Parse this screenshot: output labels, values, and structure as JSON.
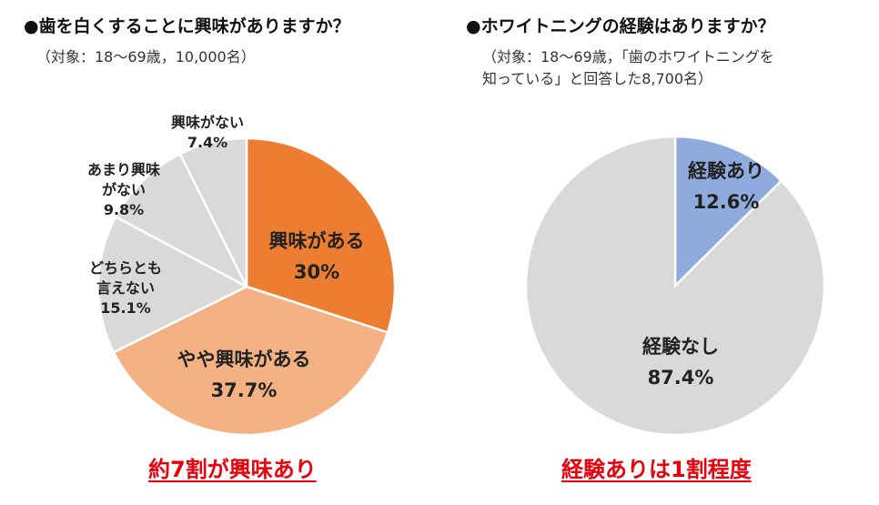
{
  "colors": {
    "orange_dark": "#ed7d31",
    "orange_light": "#f4b183",
    "gray": "#d9d9d9",
    "blue": "#8faadc",
    "conclusion_red": "#e8000b",
    "slice_border": "#ffffff"
  },
  "left": {
    "title": "●歯を白くすることに興味がありますか？",
    "note": "（対象：18〜69歳，10,000名）",
    "conclusion": "約7割が興味あり",
    "outside_labels": {
      "no_interest": {
        "line1": "興味がない",
        "line2": "7.4%"
      },
      "little_interest": {
        "line1": "あまり興味",
        "line2": "がない",
        "line3": "9.8%"
      },
      "neutral": {
        "line1": "どちらとも",
        "line2": "言えない",
        "line3": "15.1%"
      }
    }
  },
  "right": {
    "title": "●ホワイトニングの経験はありますか？",
    "note_line1": "（対象：18〜69歳，「歯のホワイトニングを",
    "note_line2": "知っている」と回答した8,700名）",
    "conclusion": "経験ありは1割程度"
  },
  "chart_data": [
    {
      "type": "pie",
      "title": "●歯を白くすることに興味がありますか？",
      "slices": [
        {
          "label": "興味がある",
          "value": 30,
          "value_label": "30%",
          "color": "#ed7d31"
        },
        {
          "label": "やや興味がある",
          "value": 37.7,
          "value_label": "37.7%",
          "color": "#f4b183"
        },
        {
          "label": "どちらとも言えない",
          "value": 15.1,
          "value_label": "15.1%",
          "color": "#d9d9d9"
        },
        {
          "label": "あまり興味がない",
          "value": 9.8,
          "value_label": "9.8%",
          "color": "#d9d9d9"
        },
        {
          "label": "興味がない",
          "value": 7.4,
          "value_label": "7.4%",
          "color": "#d9d9d9"
        }
      ],
      "start": "12 o'clock",
      "direction": "clockwise"
    },
    {
      "type": "pie",
      "title": "●ホワイトニングの経験はありますか？",
      "slices": [
        {
          "label": "経験あり",
          "value": 12.6,
          "value_label": "12.6%",
          "color": "#8faadc"
        },
        {
          "label": "経験なし",
          "value": 87.4,
          "value_label": "87.4%",
          "color": "#d9d9d9"
        }
      ],
      "start": "12 o'clock",
      "direction": "clockwise"
    }
  ]
}
